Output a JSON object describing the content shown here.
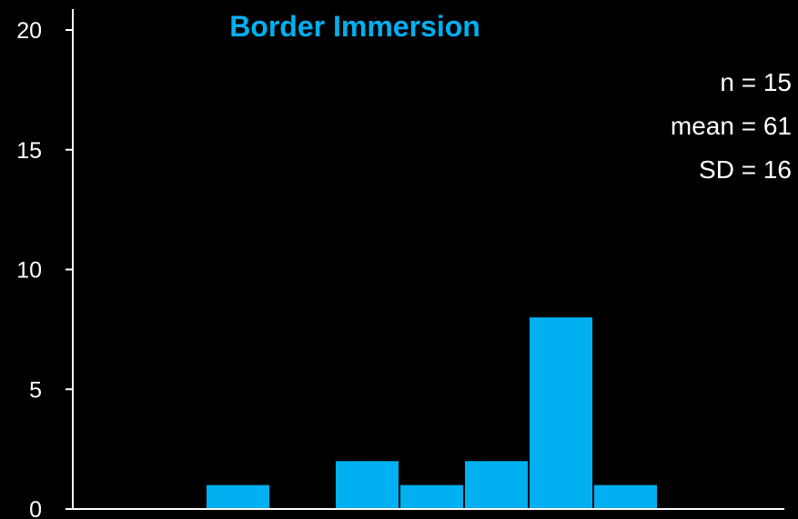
{
  "chart_data": {
    "type": "bar",
    "title": "Border Immersion",
    "xlabel": "",
    "ylabel": "",
    "ylim": [
      0,
      20
    ],
    "yticks": [
      0,
      5,
      10,
      15,
      20
    ],
    "grid": false,
    "legend": "none",
    "bins": 11,
    "values": [
      0,
      0,
      1,
      0,
      2,
      1,
      2,
      8,
      1,
      0,
      0
    ],
    "annotations": [
      "n = 15",
      "mean = 61",
      "SD = 16"
    ]
  },
  "colors": {
    "background": "#000000",
    "bar": "#00b0f0",
    "title": "#00b0f0",
    "axis": "#ffffff",
    "text": "#ffffff"
  }
}
